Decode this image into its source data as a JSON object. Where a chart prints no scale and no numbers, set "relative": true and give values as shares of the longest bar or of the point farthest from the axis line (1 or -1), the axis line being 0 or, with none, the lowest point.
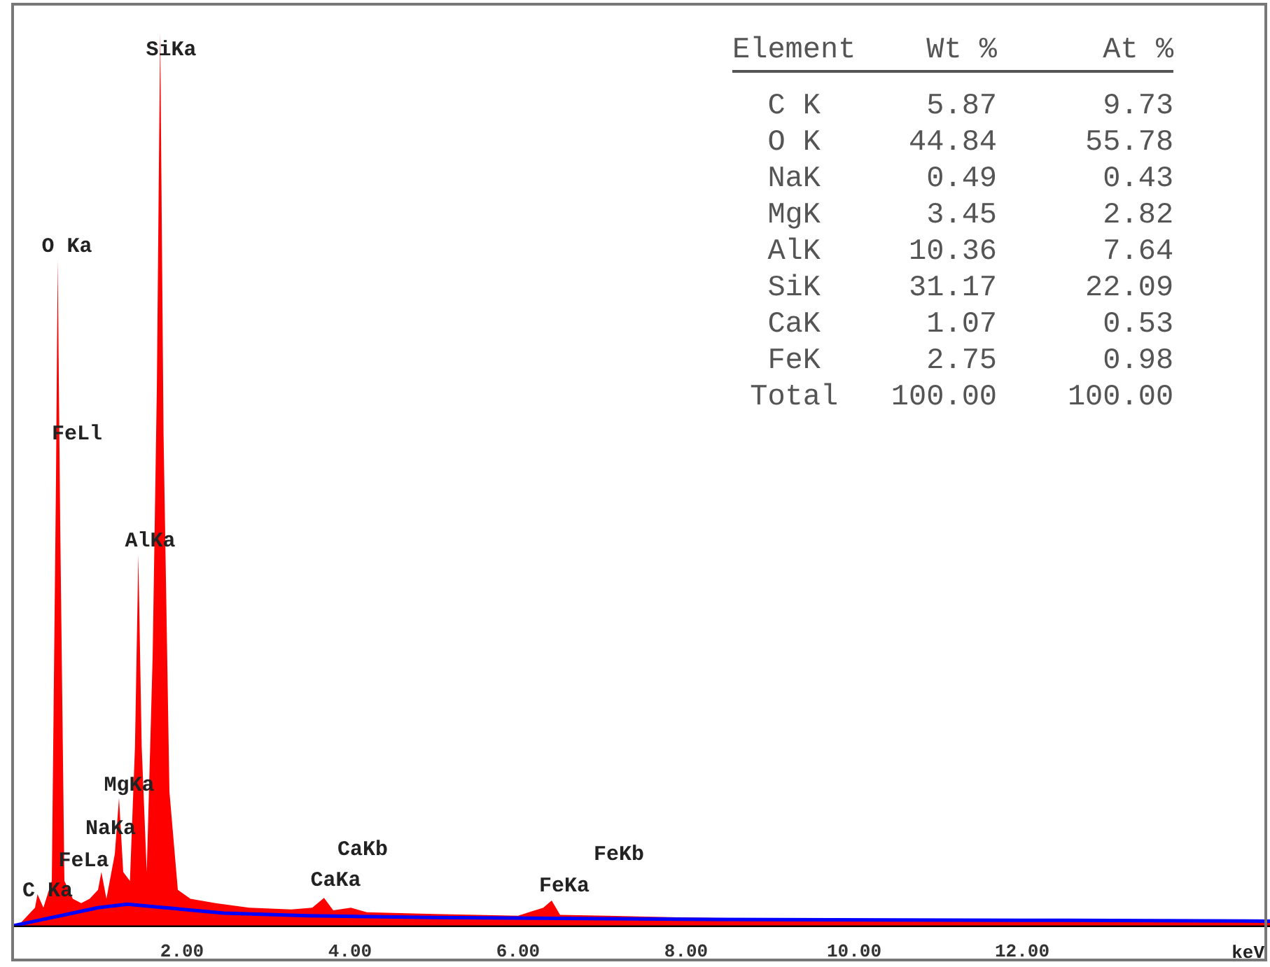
{
  "chart_data": {
    "type": "area",
    "relative": true,
    "xlabel": "keV",
    "xlim": [
      0,
      14.95
    ],
    "xticks": [
      {
        "value": 2,
        "label": "2.00"
      },
      {
        "value": 4,
        "label": "4.00"
      },
      {
        "value": 6,
        "label": "6.00"
      },
      {
        "value": 8,
        "label": "8.00"
      },
      {
        "value": 10,
        "label": "10.00"
      },
      {
        "value": 12,
        "label": "12.00"
      }
    ],
    "grid": false,
    "legend": false,
    "marker": "none",
    "series": [
      {
        "color": "#ff0000",
        "x": [
          0.05,
          0.15,
          0.25,
          0.28,
          0.35,
          0.45,
          0.5,
          0.52,
          0.55,
          0.6,
          0.7,
          0.8,
          0.9,
          1.0,
          1.04,
          1.1,
          1.2,
          1.25,
          1.3,
          1.38,
          1.44,
          1.48,
          1.52,
          1.58,
          1.65,
          1.7,
          1.74,
          1.78,
          1.85,
          1.95,
          2.1,
          2.4,
          2.8,
          3.3,
          3.55,
          3.69,
          3.8,
          4.01,
          4.2,
          5,
          6,
          6.3,
          6.4,
          6.5,
          7.06,
          8,
          10,
          12,
          14.95
        ],
        "values": [
          0,
          0.01,
          0.02,
          0.035,
          0.02,
          0.05,
          0.5,
          0.745,
          0.45,
          0.05,
          0.03,
          0.025,
          0.03,
          0.04,
          0.06,
          0.03,
          0.08,
          0.143,
          0.06,
          0.05,
          0.2,
          0.415,
          0.2,
          0.06,
          0.3,
          0.6,
          1,
          0.55,
          0.15,
          0.04,
          0.03,
          0.025,
          0.02,
          0.018,
          0.02,
          0.031,
          0.017,
          0.02,
          0.015,
          0.013,
          0.011,
          0.02,
          0.028,
          0.012,
          0.011,
          0.009,
          0.007,
          0.006,
          0.006
        ]
      },
      {
        "type": "line",
        "color": "#0000ff",
        "x": [
          0,
          0.3,
          0.6,
          1.0,
          1.35,
          1.8,
          2.5,
          3.5,
          5,
          8,
          12,
          14.95
        ],
        "values": [
          0,
          0.006,
          0.012,
          0.02,
          0.024,
          0.02,
          0.014,
          0.011,
          0.009,
          0.007,
          0.006,
          0.005
        ]
      }
    ],
    "annotations": [
      "SiKa",
      "O Ka",
      "FeLl",
      "AlKa",
      "MgKa",
      "NaKa",
      "FeLa",
      "C Ka",
      "CaKb",
      "CaKa",
      "FeKb",
      "FeKa",
      "Element    Wt %      At %",
      "  C K      5.87      9.73",
      "  O K     44.84     55.78",
      "  NaK      0.49      0.43",
      "  MgK      3.45      2.82",
      "  AlK     10.36      7.64",
      "  SiK     31.17     22.09",
      "  CaK      1.07      0.53",
      "  FeK      2.75      0.98",
      " Total   100.00    100.00"
    ]
  }
}
